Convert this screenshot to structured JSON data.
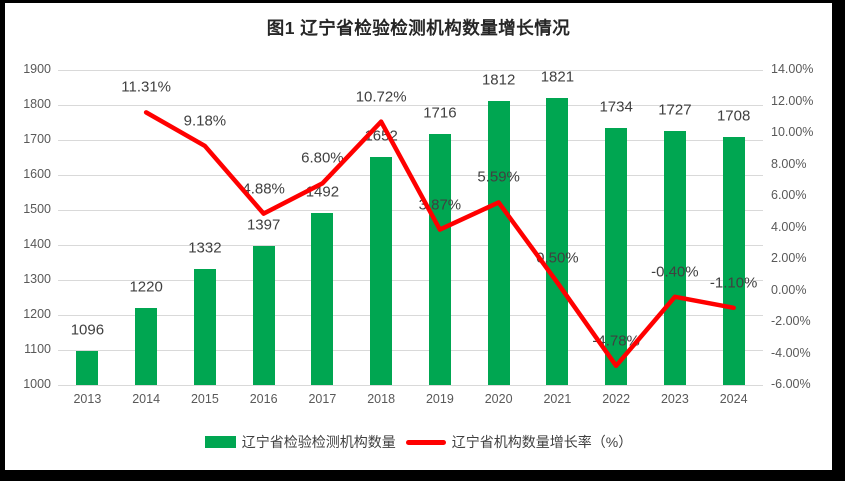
{
  "chart_data": {
    "type": "combo-bar-line",
    "title": "图1 辽宁省检验检测机构数量增长情况",
    "categories": [
      "2013",
      "2014",
      "2015",
      "2016",
      "2017",
      "2018",
      "2019",
      "2020",
      "2021",
      "2022",
      "2023",
      "2024"
    ],
    "series": [
      {
        "name": "辽宁省检验检测机构数量",
        "type": "bar",
        "axis": "left",
        "color": "#00A651",
        "values": [
          1096,
          1220,
          1332,
          1397,
          1492,
          1652,
          1716,
          1812,
          1821,
          1734,
          1727,
          1708
        ],
        "labels": [
          "1096",
          "1220",
          "1332",
          "1397",
          "1492",
          "1652",
          "1716",
          "1812",
          "1821",
          "1734",
          "1727",
          "1708"
        ]
      },
      {
        "name": "辽宁省机构数量增长率（%）",
        "type": "line",
        "axis": "right",
        "color": "#FF0000",
        "values": [
          null,
          11.31,
          9.18,
          4.88,
          6.8,
          10.72,
          3.87,
          5.59,
          0.5,
          -4.78,
          -0.4,
          -1.1
        ],
        "labels": [
          null,
          "11.31%",
          "9.18%",
          "4.88%",
          "6.80%",
          "10.72%",
          "3.87%",
          "5.59%",
          "0.50%",
          "-4.78%",
          "-0.40%",
          "-1.10%"
        ]
      }
    ],
    "left_axis": {
      "min": 1000,
      "max": 1900,
      "step": 100,
      "tick_labels": [
        "1000",
        "1100",
        "1200",
        "1300",
        "1400",
        "1500",
        "1600",
        "1700",
        "1800",
        "1900"
      ]
    },
    "right_axis": {
      "min": -6,
      "max": 14,
      "step": 2,
      "tick_labels": [
        "-6.00%",
        "-4.00%",
        "-2.00%",
        "0.00%",
        "2.00%",
        "4.00%",
        "6.00%",
        "8.00%",
        "10.00%",
        "12.00%",
        "14.00%"
      ]
    },
    "grid": true,
    "legend_position": "bottom",
    "colors": {
      "grid": "#D9D9D9",
      "tick_text": "#595959",
      "label_text": "#404040",
      "title_text": "#262626",
      "frame": "#000000",
      "background": "#FFFFFF"
    }
  }
}
